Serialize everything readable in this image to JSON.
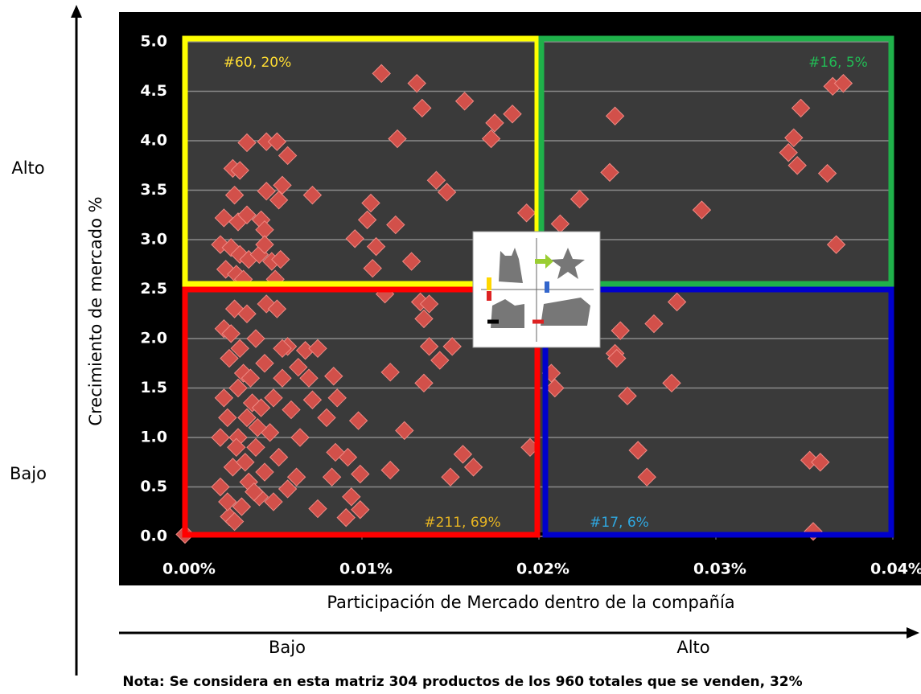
{
  "chart_data": {
    "type": "scatter",
    "x_label": "Participación de Mercado dentro de la compañía",
    "y_label": "Crecimiento de mercado %",
    "color": "#d2504a",
    "xlim": [
      0,
      0.04
    ],
    "ylim": [
      0,
      5
    ],
    "xticks": [
      {
        "value": 0,
        "label": "0.00%"
      },
      {
        "value": 0.01,
        "label": "0.01%"
      },
      {
        "value": 0.02,
        "label": "0.02%"
      },
      {
        "value": 0.03,
        "label": "0.03%"
      },
      {
        "value": 0.04,
        "label": "0.04%"
      }
    ],
    "yticks": [
      {
        "value": 0,
        "label": "0.0"
      },
      0.5,
      {
        "value": 1,
        "label": "1.0"
      },
      1.5,
      {
        "value": 2,
        "label": "2.0"
      },
      2.5,
      {
        "value": 3,
        "label": "3.0"
      },
      3.5,
      {
        "value": 4,
        "label": "4.0"
      },
      4.5,
      {
        "value": 5,
        "label": "5.0"
      }
    ],
    "grid": true,
    "annotations": [
      "#60, 20%",
      "#16, 5%",
      "#211, 69%",
      "#17, 6%"
    ],
    "x": [
      0.0111,
      0.0131,
      0.0134,
      0.0158,
      0.0185,
      0.0175,
      0.0173,
      0.012,
      0.0142,
      0.0148,
      0.0105,
      0.0103,
      0.0119,
      0.0096,
      0.0108,
      0.0128,
      0.0106,
      0.0193,
      0.0035,
      0.0046,
      0.0052,
      0.0058,
      0.0027,
      0.0031,
      0.0028,
      0.0046,
      0.0053,
      0.0055,
      0.0072,
      0.0022,
      0.003,
      0.0035,
      0.0043,
      0.0045,
      0.002,
      0.0026,
      0.0031,
      0.0036,
      0.0042,
      0.0049,
      0.0054,
      0.0023,
      0.0029,
      0.0045,
      0.0033,
      0.0051,
      0.0243,
      0.024,
      0.0223,
      0.0212,
      0.0292,
      0.0348,
      0.0344,
      0.0341,
      0.0346,
      0.0363,
      0.0366,
      0.0372,
      0.0368,
      0.0,
      0.0116,
      0.0124,
      0.0116,
      0.015,
      0.0157,
      0.0163,
      0.0195,
      0.0135,
      0.0138,
      0.0144,
      0.0151,
      0.0135,
      0.0133,
      0.0138,
      0.0113,
      0.0098,
      0.0092,
      0.0094,
      0.0099,
      0.0091,
      0.0099,
      0.0083,
      0.0085,
      0.008,
      0.0086,
      0.0084,
      0.007,
      0.0072,
      0.0068,
      0.0075,
      0.0064,
      0.0058,
      0.0055,
      0.006,
      0.0065,
      0.0063,
      0.0075,
      0.0058,
      0.005,
      0.0045,
      0.004,
      0.0035,
      0.003,
      0.0025,
      0.0022,
      0.0028,
      0.0035,
      0.004,
      0.0045,
      0.005,
      0.0048,
      0.0042,
      0.0032,
      0.0025,
      0.002,
      0.002,
      0.0022,
      0.0027,
      0.003,
      0.0033,
      0.0038,
      0.0046,
      0.0052,
      0.0024,
      0.0028,
      0.0036,
      0.0041,
      0.0053,
      0.0055,
      0.0026,
      0.0031,
      0.0037,
      0.0043,
      0.0024,
      0.0029,
      0.0034,
      0.0039,
      0.0246,
      0.0243,
      0.0244,
      0.0209,
      0.0207,
      0.025,
      0.0275,
      0.0278,
      0.0265,
      0.0256,
      0.0261,
      0.0353,
      0.0359,
      0.0355
    ],
    "y": [
      4.68,
      4.58,
      4.33,
      4.4,
      4.27,
      4.18,
      4.02,
      4.02,
      3.6,
      3.48,
      3.37,
      3.2,
      3.15,
      3.01,
      2.93,
      2.78,
      2.71,
      3.27,
      3.98,
      3.99,
      3.99,
      3.85,
      3.72,
      3.7,
      3.45,
      3.49,
      3.4,
      3.55,
      3.45,
      3.22,
      3.18,
      3.25,
      3.2,
      3.1,
      2.95,
      2.92,
      2.85,
      2.8,
      2.85,
      2.78,
      2.8,
      2.7,
      2.65,
      2.95,
      2.6,
      2.6,
      4.25,
      3.68,
      3.41,
      3.16,
      3.3,
      4.33,
      4.03,
      3.88,
      3.75,
      3.67,
      4.55,
      4.58,
      2.95,
      0.02,
      1.66,
      1.07,
      0.67,
      0.6,
      0.83,
      0.7,
      0.9,
      1.55,
      1.92,
      1.78,
      1.92,
      2.2,
      2.37,
      2.35,
      2.45,
      1.17,
      0.8,
      0.4,
      0.27,
      0.19,
      0.63,
      0.6,
      0.85,
      1.2,
      1.4,
      1.62,
      1.6,
      1.38,
      1.88,
      1.9,
      1.71,
      1.92,
      1.6,
      1.28,
      1.0,
      0.6,
      0.28,
      0.48,
      0.35,
      0.65,
      0.9,
      1.2,
      1.5,
      1.8,
      2.1,
      2.3,
      2.25,
      2.0,
      1.75,
      1.4,
      1.05,
      0.4,
      0.3,
      0.2,
      0.5,
      1.0,
      1.4,
      0.7,
      1.0,
      1.65,
      1.35,
      2.35,
      2.3,
      0.35,
      0.15,
      0.55,
      1.1,
      0.8,
      1.9,
      2.05,
      1.9,
      1.6,
      1.3,
      1.2,
      0.9,
      0.75,
      0.45,
      2.08,
      1.85,
      1.8,
      1.5,
      1.65,
      1.42,
      1.55,
      2.37,
      2.15,
      0.87,
      0.6,
      0.77,
      0.75,
      0.05
    ]
  },
  "labels": {
    "y_high": "Alto",
    "y_low": "Bajo",
    "x_low": "Bajo",
    "x_high": "Alto",
    "note": "Nota: Se considera en esta matriz 304 productos de los 960 totales que se venden, 32%"
  }
}
